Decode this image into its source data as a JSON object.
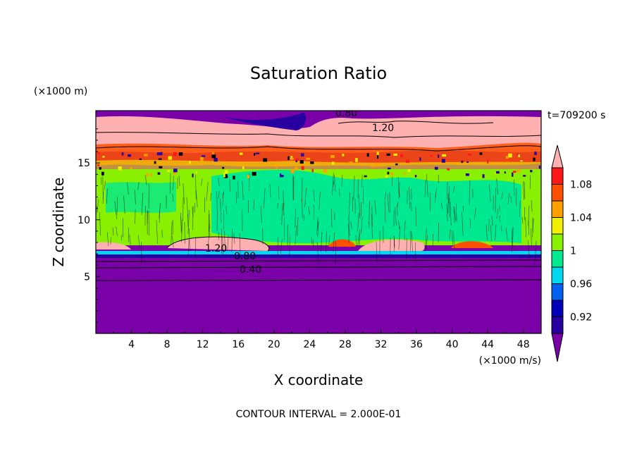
{
  "chart_data": {
    "type": "heatmap",
    "title": "Saturation Ratio",
    "xlabel": "X coordinate",
    "ylabel": "Z coordinate",
    "x_unit": "(×1000 m/s)",
    "y_unit": "(×1000 m)",
    "time_label": "t=709200 s",
    "footer": "CONTOUR INTERVAL = 2.000E-01",
    "xlim": [
      0,
      50
    ],
    "ylim": [
      0,
      19.6
    ],
    "x_ticks": [
      "4",
      "8",
      "12",
      "16",
      "20",
      "24",
      "28",
      "32",
      "36",
      "40",
      "44",
      "48"
    ],
    "y_ticks": [
      "5",
      "10",
      "15"
    ],
    "colorbar": {
      "labels": [
        "1.08",
        "1.04",
        "1",
        "0.96",
        "0.92"
      ],
      "levels": [
        "0.90",
        "0.92",
        "0.94",
        "0.96",
        "0.98",
        "1.00",
        "1.02",
        "1.04",
        "1.06",
        "1.08",
        "1.10"
      ],
      "colors": [
        "#7a00a8",
        "#2800a0",
        "#0000b8",
        "#0060f0",
        "#00d8f0",
        "#00e890",
        "#88f000",
        "#f0f000",
        "#ffa000",
        "#ff5000",
        "#ff1818",
        "#ffb0b0"
      ]
    },
    "contour_labels": [
      "0.80",
      "1.20",
      "1.20",
      "0.80",
      "0.40"
    ],
    "bands": [
      {
        "name": "upper dry layer",
        "z": [
          19.0,
          19.6
        ],
        "value": "<0.90"
      },
      {
        "name": "upper supersaturated layer",
        "z": [
          16.2,
          19.0
        ],
        "value": ">1.10"
      },
      {
        "name": "mid mixed layer",
        "z": [
          7.6,
          16.2
        ],
        "value": "0.98–1.02"
      },
      {
        "name": "low supersaturated patches",
        "z": [
          7.3,
          8.7
        ],
        "value": ">1.10"
      },
      {
        "name": "lower dry layer",
        "z": [
          0,
          7.3
        ],
        "value": "<0.90"
      }
    ]
  }
}
